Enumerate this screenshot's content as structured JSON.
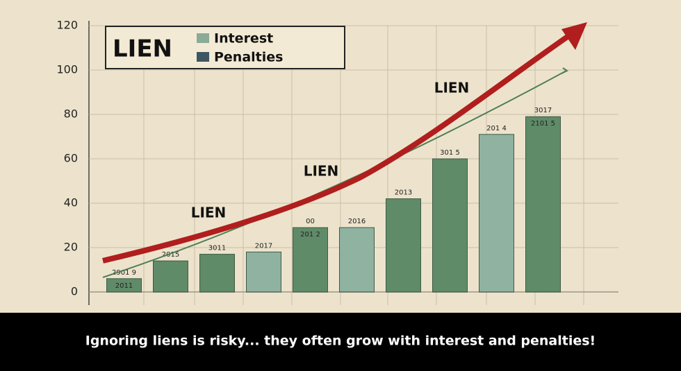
{
  "chart_data": {
    "type": "bar",
    "values": [
      6,
      14,
      17,
      18,
      29,
      29,
      42,
      60,
      71,
      79
    ],
    "colors": [
      "#5f8b68",
      "#5f8b68",
      "#5f8b68",
      "#8fb2a1",
      "#5f8b68",
      "#8fb2a1",
      "#5f8b68",
      "#5f8b68",
      "#8fb2a1",
      "#5f8b68"
    ],
    "bar_labels": [
      [
        "2901 9",
        "2011"
      ],
      [
        "2015"
      ],
      [
        "3011"
      ],
      [
        "2017"
      ],
      [
        "00",
        "201 2"
      ],
      [
        "2016"
      ],
      [
        "2013"
      ],
      [
        "301 5"
      ],
      [
        "201 4"
      ],
      [
        "3017",
        "2101 5"
      ]
    ],
    "ylim": [
      0,
      120
    ],
    "yticks": [
      0,
      20,
      40,
      60,
      80,
      100,
      120
    ],
    "grid": true,
    "legend": {
      "title": "LIEN",
      "items": [
        {
          "name": "Interest",
          "color": "#8aab97"
        },
        {
          "name": "Penalties",
          "color": "#3e5661"
        }
      ]
    },
    "annotations": [
      "LIEN",
      "LIEN",
      "LIEN"
    ],
    "caption": "Ignoring liens is risky... they often grow with interest and penalties!"
  }
}
